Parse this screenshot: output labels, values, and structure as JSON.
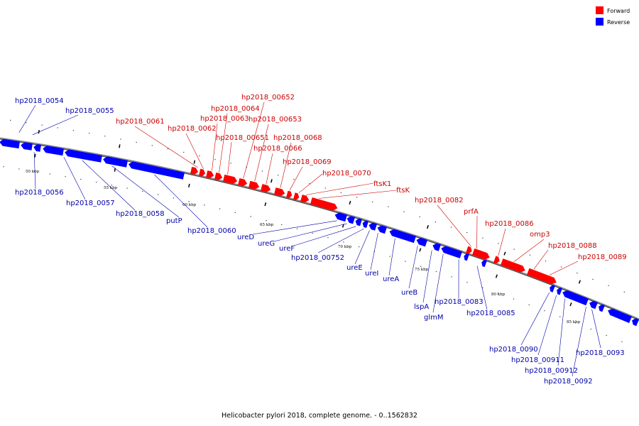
{
  "caption": "Helicobacter pylori 2018, complete genome. - 0..1562832",
  "legend": {
    "forward": {
      "label": "Forward",
      "color": "#ff0000"
    },
    "reverse": {
      "label": "Reverse",
      "color": "#0000ff"
    }
  },
  "ticks": [
    "50 kbp",
    "55 kbp",
    "60 kbp",
    "65 kbp",
    "70 kbp",
    "75 kbp",
    "80 kbp",
    "85 kbp"
  ],
  "forward_labels": [
    "hp2018_0061",
    "hp2018_0062",
    "hp2018_0063",
    "hp2018_0064",
    "hp2018_00651",
    "hp2018_00652",
    "hp2018_00653",
    "hp2018_0066",
    "hp2018_0068",
    "hp2018_0069",
    "hp2018_0070",
    "ftsK1",
    "ftsK",
    "hp2018_0082",
    "prfA",
    "hp2018_0086",
    "omp3",
    "hp2018_0088",
    "hp2018_0089"
  ],
  "reverse_labels": [
    "hp2018_0054",
    "hp2018_0055",
    "hp2018_0056",
    "hp2018_0057",
    "hp2018_0058",
    "putP",
    "hp2018_0060",
    "ureD",
    "ureG",
    "ureF",
    "hp2018_00752",
    "ureE",
    "ureI",
    "ureA",
    "ureB",
    "lspA",
    "glmM",
    "hp2018_0083",
    "hp2018_0085",
    "hp2018_0090",
    "hp2018_00911",
    "hp2018_00912",
    "hp2018_0092",
    "hp2018_0093"
  ]
}
